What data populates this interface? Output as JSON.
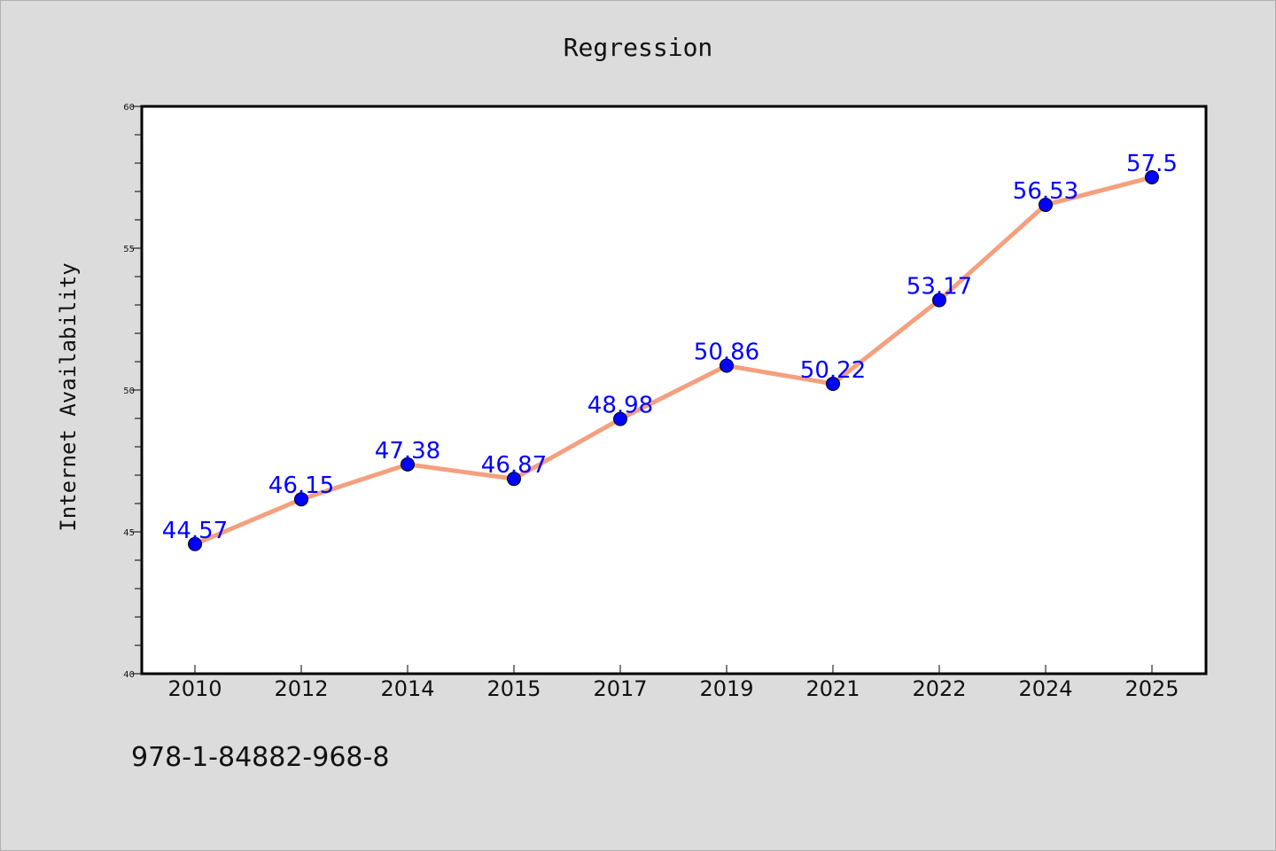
{
  "chart_data": {
    "type": "line",
    "title": "Regression",
    "xlabel": "",
    "ylabel": "Internet Availability",
    "categories": [
      "2010",
      "2012",
      "2014",
      "2015",
      "2017",
      "2019",
      "2021",
      "2022",
      "2024",
      "2025"
    ],
    "values": [
      44.57,
      46.15,
      47.38,
      46.87,
      48.98,
      50.86,
      50.22,
      53.17,
      56.53,
      57.5
    ],
    "value_labels": [
      "44.57",
      "46.15",
      "47.38",
      "46.87",
      "48.98",
      "50.86",
      "50.22",
      "53.17",
      "56.53",
      "57.5"
    ],
    "ylim": [
      40,
      60
    ],
    "yticks": [
      40,
      45,
      50,
      55,
      60
    ],
    "grid": false,
    "legend": "none",
    "line_color": "#f4a07f",
    "marker_color": "#0000ff",
    "label_color": "#0000ff",
    "background_color": "#dcdcdc",
    "plot_background": "#ffffff"
  },
  "caption": "978-1-84882-968-8"
}
